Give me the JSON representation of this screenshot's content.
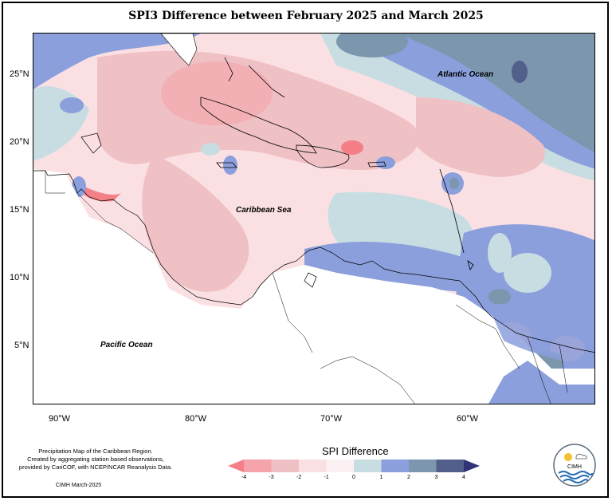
{
  "title": "SPI3 Difference between February 2025 and March 2025",
  "axes": {
    "lat_ticks": [
      "25°N",
      "20°N",
      "15°N",
      "10°N",
      "5°N"
    ],
    "lon_ticks": [
      "90°W",
      "80°W",
      "70°W",
      "60°W"
    ]
  },
  "map_labels": {
    "atlantic": "Atlantic Ocean",
    "caribbean": "Caribbean Sea",
    "pacific": "Pacific Ocean"
  },
  "legend": {
    "title": "SPI Difference",
    "ticks": [
      "-4",
      "-3",
      "-2",
      "-1",
      "0",
      "1",
      "2",
      "3",
      "4"
    ],
    "colors": [
      "#f47f86",
      "#f4a4aa",
      "#efc0c4",
      "#fbe0e3",
      "#fbf1f2",
      "#c8dde2",
      "#8b9fdc",
      "#7b96ad",
      "#535f8b",
      "#2f3478"
    ]
  },
  "credit": {
    "line1": "Precipitation Map of the Caribbean Region.",
    "line2": "Created by aggregating station based observations,",
    "line3": "provided by CariCOF, with NCEP/NCAR Reanalysis Data.",
    "date": "CIMH March-2025"
  },
  "logo": {
    "name": "CIMH"
  }
}
